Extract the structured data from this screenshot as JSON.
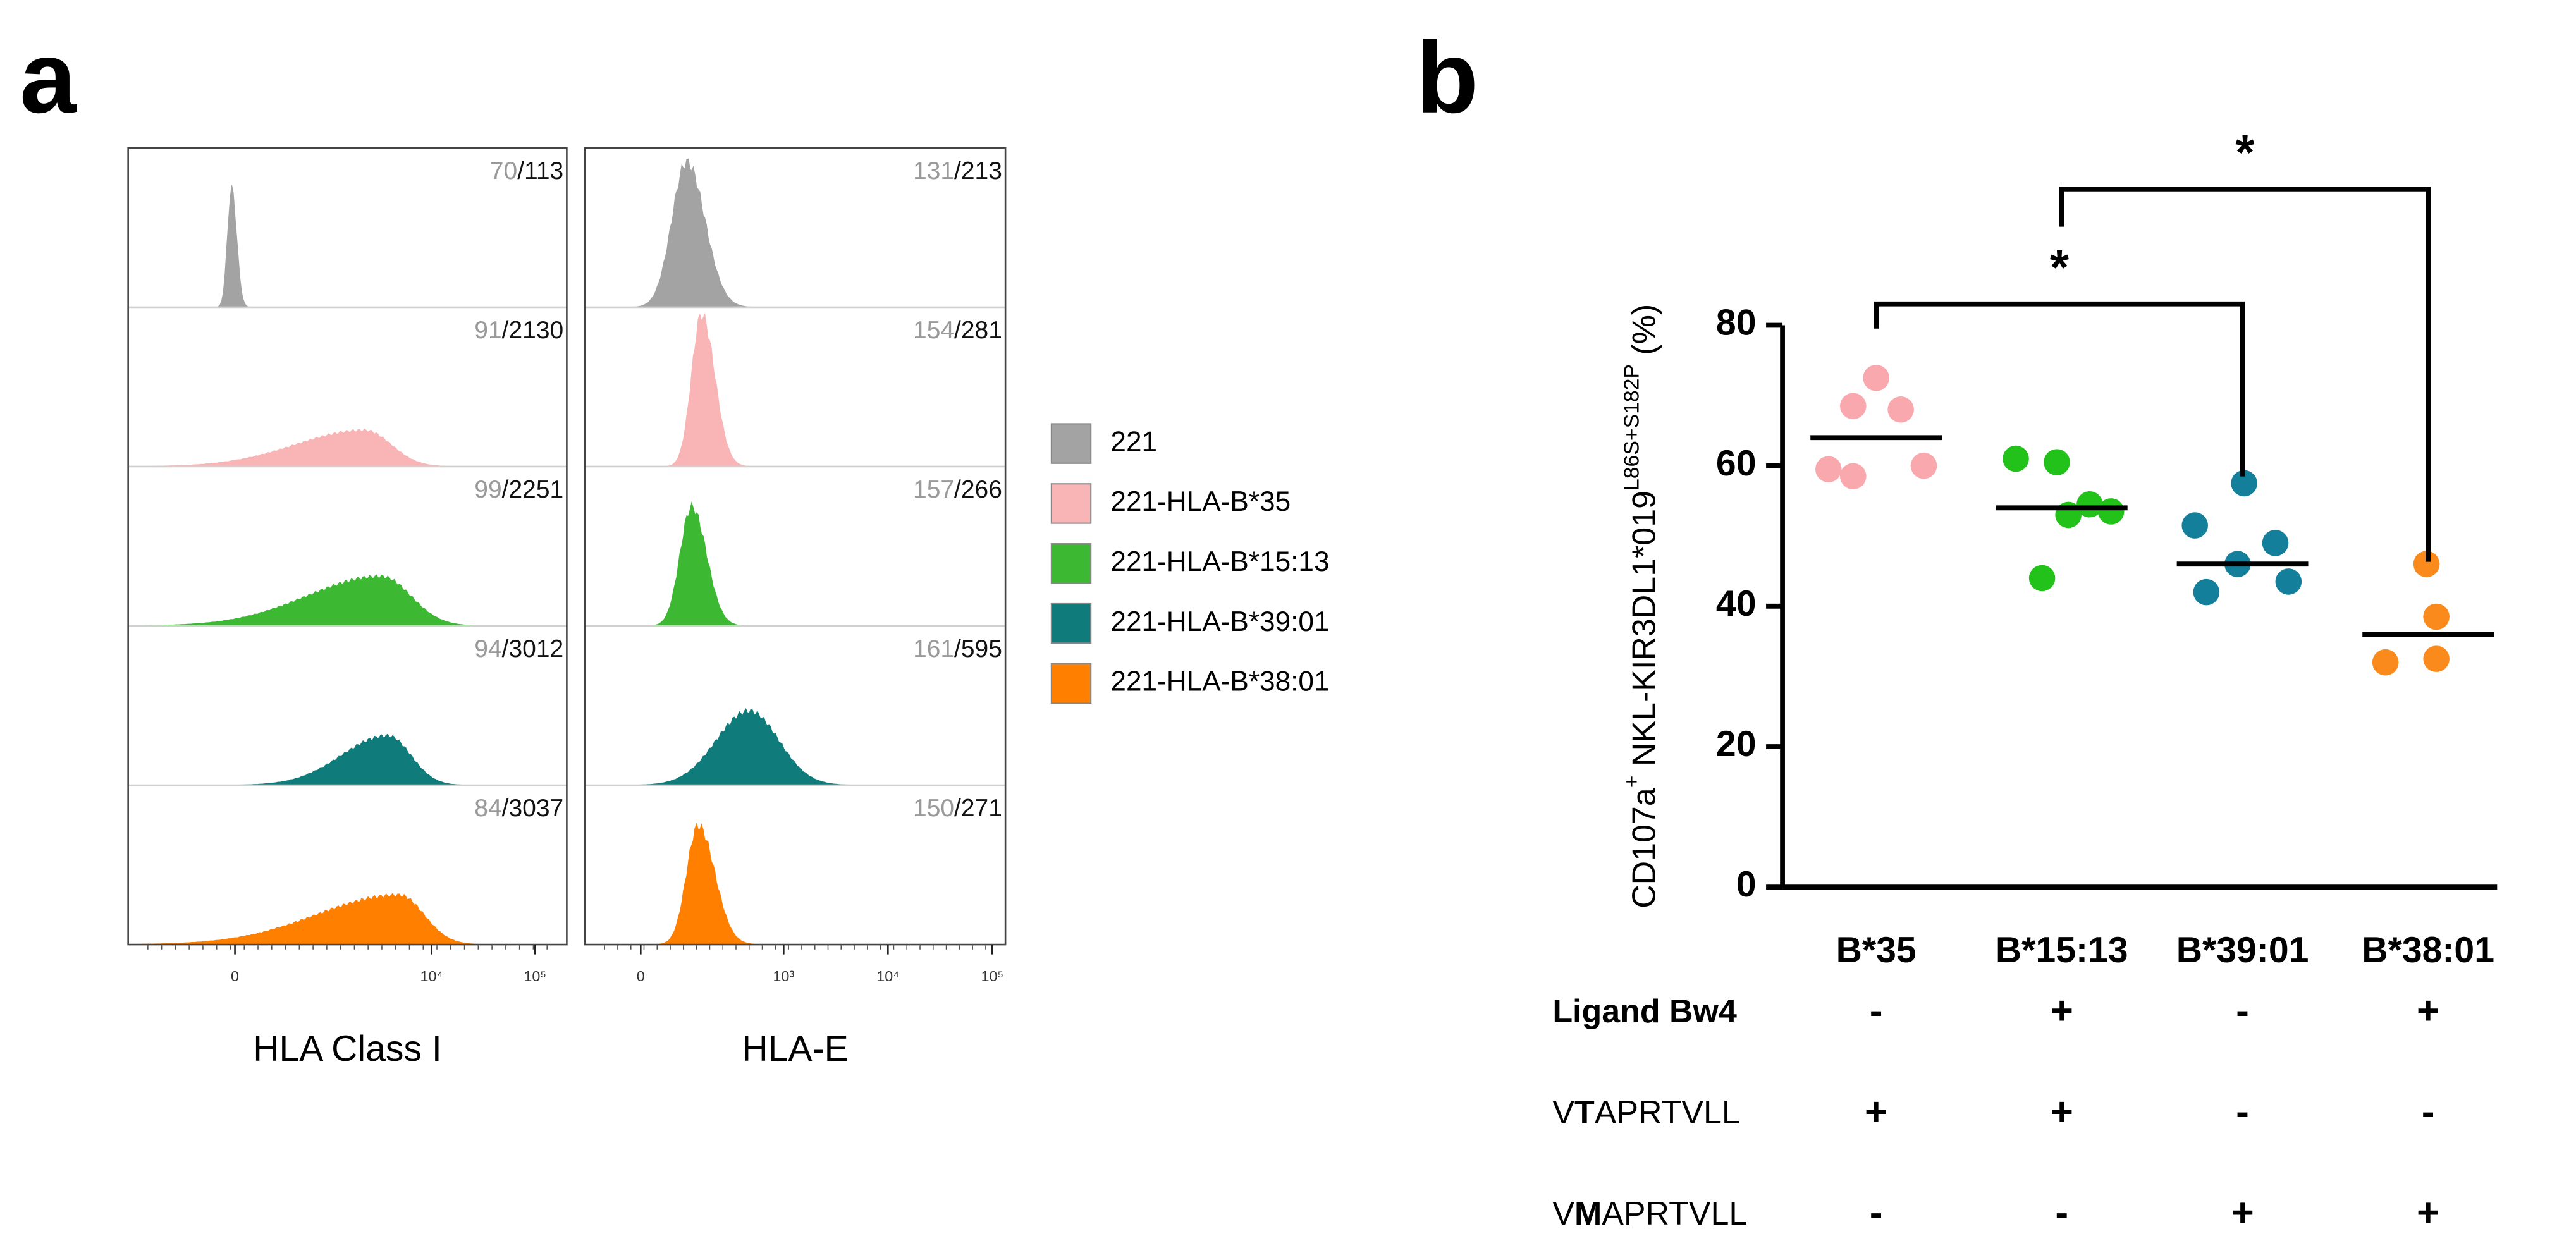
{
  "chart_data": [
    {
      "type": "flow-histogram",
      "panel_label": "a",
      "samples": [
        {
          "name": "221",
          "color": "#a3a3a3"
        },
        {
          "name": "221-HLA-B*35",
          "color": "#f9b5b5"
        },
        {
          "name": "221-HLA-B*15:13",
          "color": "#3cb833"
        },
        {
          "name": "221-HLA-B*39:01",
          "color": "#0f7b7b"
        },
        {
          "name": "221-HLA-B*38:01",
          "color": "#ff8000"
        }
      ],
      "panels": [
        {
          "xlabel": "HLA Class I",
          "xticks": [
            {
              "value": 0,
              "label": "0"
            },
            {
              "value": 10000,
              "label": "10⁴"
            },
            {
              "value": 100000,
              "label": "10⁵"
            }
          ],
          "mfi": [
            "70/113",
            "91/2130",
            "99/2251",
            "94/3012",
            "84/3037"
          ]
        },
        {
          "xlabel": "HLA-E",
          "xticks": [
            {
              "value": 0,
              "label": "0"
            },
            {
              "value": 1000,
              "label": "10³"
            },
            {
              "value": 10000,
              "label": "10⁴"
            },
            {
              "value": 100000,
              "label": "10⁵"
            }
          ],
          "mfi": [
            "131/213",
            "154/281",
            "157/266",
            "161/595",
            "150/271"
          ]
        }
      ]
    },
    {
      "type": "dot",
      "panel_label": "b",
      "ylabel": [
        "CD107a",
        "+",
        " NKL-KIR3DL1*019",
        "L86S+S182P",
        " (%)"
      ],
      "categories": [
        "B*35",
        "B*15:13",
        "B*39:01",
        "B*38:01"
      ],
      "colors": [
        "#f9a9ad",
        "#22c21b",
        "#137f9a",
        "#fb8a1c"
      ],
      "values": [
        [
          72.5,
          68.5,
          68,
          60,
          59.5,
          58.5
        ],
        [
          61,
          60.5,
          54.5,
          53.5,
          53,
          44
        ],
        [
          57.5,
          51.5,
          49,
          46,
          43.5,
          42
        ],
        [
          46,
          38.5,
          32.5,
          32
        ]
      ],
      "medians": [
        64,
        54,
        46,
        36
      ],
      "ylim": [
        0,
        80
      ],
      "yticks": [
        0,
        20,
        40,
        60,
        80
      ],
      "annotations": [
        "*",
        "*"
      ],
      "table": [
        {
          "label": "Ligand Bw4",
          "values": [
            "-",
            "+",
            "-",
            "+"
          ]
        },
        {
          "label": "VTAPRTVLL",
          "values": [
            "+",
            "+",
            "-",
            "-"
          ]
        },
        {
          "label": "VMAPRTVLL",
          "values": [
            "-",
            "-",
            "+",
            "+"
          ]
        }
      ]
    }
  ]
}
